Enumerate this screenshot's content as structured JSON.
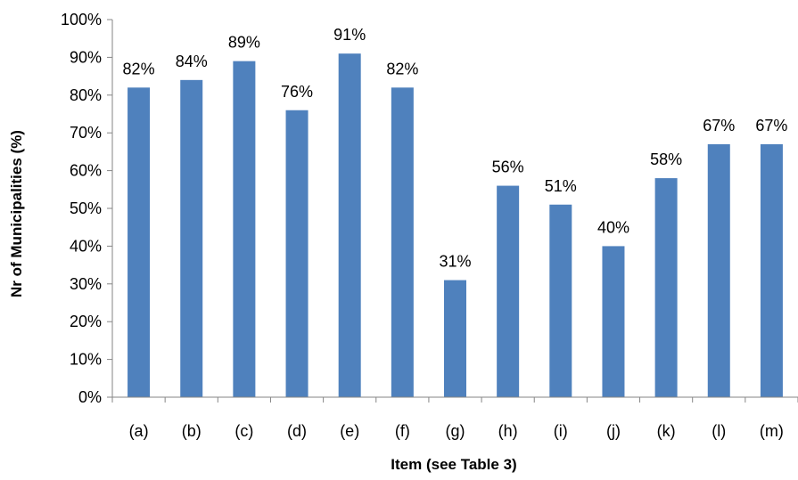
{
  "chart_data": {
    "type": "bar",
    "title": "",
    "xlabel": "Item (see Table 3)",
    "ylabel": "Nr of Municipalities (%)",
    "categories": [
      "(a)",
      "(b)",
      "(c)",
      "(d)",
      "(e)",
      "(f)",
      "(g)",
      "(h)",
      "(i)",
      "(j)",
      "(k)",
      "(l)",
      "(m)"
    ],
    "values": [
      82,
      84,
      89,
      76,
      91,
      82,
      31,
      56,
      51,
      40,
      58,
      67,
      67
    ],
    "data_labels": [
      "82%",
      "84%",
      "89%",
      "76%",
      "91%",
      "82%",
      "31%",
      "56%",
      "51%",
      "40%",
      "58%",
      "67%",
      "67%"
    ],
    "ylim": [
      0,
      100
    ],
    "yticks": [
      0,
      10,
      20,
      30,
      40,
      50,
      60,
      70,
      80,
      90,
      100
    ],
    "ytick_labels": [
      "0%",
      "10%",
      "20%",
      "30%",
      "40%",
      "50%",
      "60%",
      "70%",
      "80%",
      "90%",
      "100%"
    ],
    "bar_color": "#4F81BD",
    "axis_color": "#868686",
    "grid": false,
    "legend": false
  }
}
